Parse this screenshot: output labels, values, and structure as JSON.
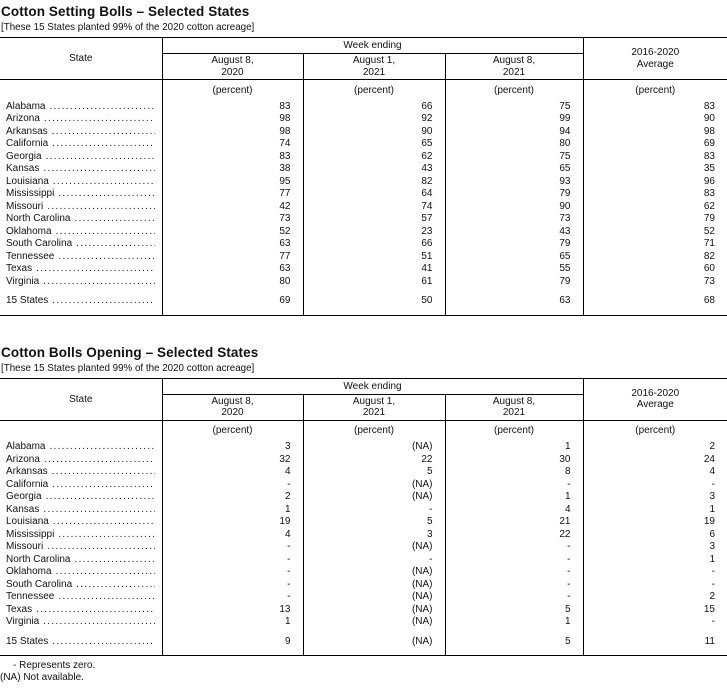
{
  "ink_color": "#111111",
  "tables": [
    {
      "title": "Cotton Setting Bolls – Selected States",
      "note": "[These 15 States planted 99% of the 2020 cotton acreage]",
      "header": {
        "state": "State",
        "week_ending": "Week ending",
        "dates": [
          "August 8,\n2020",
          "August 1,\n2021",
          "August 8,\n2021"
        ],
        "average": "2016-2020\nAverage",
        "units": [
          "(percent)",
          "(percent)",
          "(percent)",
          "(percent)"
        ]
      },
      "rows": [
        {
          "state": "Alabama",
          "values": [
            "83",
            "66",
            "75",
            "83"
          ]
        },
        {
          "state": "Arizona",
          "values": [
            "98",
            "92",
            "99",
            "90"
          ]
        },
        {
          "state": "Arkansas",
          "values": [
            "98",
            "90",
            "94",
            "98"
          ]
        },
        {
          "state": "California",
          "values": [
            "74",
            "65",
            "80",
            "69"
          ]
        },
        {
          "state": "Georgia",
          "values": [
            "83",
            "62",
            "75",
            "83"
          ]
        },
        {
          "state": "Kansas",
          "values": [
            "38",
            "43",
            "65",
            "35"
          ]
        },
        {
          "state": "Louisiana",
          "values": [
            "95",
            "82",
            "93",
            "96"
          ]
        },
        {
          "state": "Mississippi",
          "values": [
            "77",
            "64",
            "79",
            "83"
          ]
        },
        {
          "state": "Missouri",
          "values": [
            "42",
            "74",
            "90",
            "62"
          ]
        },
        {
          "state": "North Carolina",
          "values": [
            "73",
            "57",
            "73",
            "79"
          ]
        },
        {
          "state": "Oklahoma",
          "values": [
            "52",
            "23",
            "43",
            "52"
          ]
        },
        {
          "state": "South Carolina",
          "values": [
            "63",
            "66",
            "79",
            "71"
          ]
        },
        {
          "state": "Tennessee",
          "values": [
            "77",
            "51",
            "65",
            "82"
          ]
        },
        {
          "state": "Texas",
          "values": [
            "63",
            "41",
            "55",
            "60"
          ]
        },
        {
          "state": "Virginia",
          "values": [
            "80",
            "61",
            "79",
            "73"
          ]
        }
      ],
      "total": {
        "state": "15 States",
        "values": [
          "69",
          "50",
          "63",
          "68"
        ]
      }
    },
    {
      "title": "Cotton Bolls Opening – Selected States",
      "note": "[These 15 States planted 99% of the 2020 cotton acreage]",
      "header": {
        "state": "State",
        "week_ending": "Week ending",
        "dates": [
          "August 8,\n2020",
          "August 1,\n2021",
          "August 8,\n2021"
        ],
        "average": "2016-2020\nAverage",
        "units": [
          "(percent)",
          "(percent)",
          "(percent)",
          "(percent)"
        ]
      },
      "rows": [
        {
          "state": "Alabama",
          "values": [
            "3",
            "(NA)",
            "1",
            "2"
          ]
        },
        {
          "state": "Arizona",
          "values": [
            "32",
            "22",
            "30",
            "24"
          ]
        },
        {
          "state": "Arkansas",
          "values": [
            "4",
            "5",
            "8",
            "4"
          ]
        },
        {
          "state": "California",
          "values": [
            "-",
            "(NA)",
            "-",
            "-"
          ]
        },
        {
          "state": "Georgia",
          "values": [
            "2",
            "(NA)",
            "1",
            "3"
          ]
        },
        {
          "state": "Kansas",
          "values": [
            "1",
            "-",
            "4",
            "1"
          ]
        },
        {
          "state": "Louisiana",
          "values": [
            "19",
            "5",
            "21",
            "19"
          ]
        },
        {
          "state": "Mississippi",
          "values": [
            "4",
            "3",
            "22",
            "6"
          ]
        },
        {
          "state": "Missouri",
          "values": [
            "-",
            "(NA)",
            "-",
            "3"
          ]
        },
        {
          "state": "North Carolina",
          "values": [
            "-",
            "-",
            "-",
            "1"
          ]
        },
        {
          "state": "Oklahoma",
          "values": [
            "-",
            "(NA)",
            "-",
            "-"
          ]
        },
        {
          "state": "South Carolina",
          "values": [
            "-",
            "(NA)",
            "-",
            "-"
          ]
        },
        {
          "state": "Tennessee",
          "values": [
            "-",
            "(NA)",
            "-",
            "2"
          ]
        },
        {
          "state": "Texas",
          "values": [
            "13",
            "(NA)",
            "5",
            "15"
          ]
        },
        {
          "state": "Virginia",
          "values": [
            "1",
            "(NA)",
            "1",
            "-"
          ]
        }
      ],
      "total": {
        "state": "15 States",
        "values": [
          "9",
          "(NA)",
          "5",
          "11"
        ]
      }
    }
  ],
  "footnotes": {
    "dash": "- Represents zero.",
    "na": "(NA) Not available."
  }
}
